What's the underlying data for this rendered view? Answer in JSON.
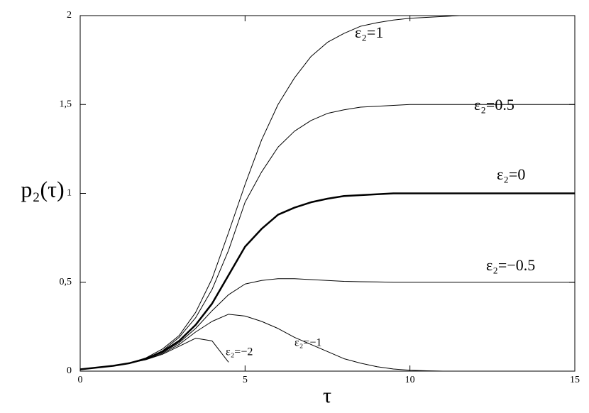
{
  "chart_data": {
    "type": "line",
    "xlabel": "τ",
    "ylabel": "p₂(τ)",
    "x": [
      0,
      0.5,
      1,
      1.5,
      2,
      2.5,
      3,
      3.5,
      4,
      4.5,
      5,
      5.5,
      6,
      6.5,
      7,
      7.5,
      8,
      8.5,
      9,
      9.5,
      10,
      10.5,
      11,
      11.5,
      12,
      12.5,
      13,
      13.5,
      14,
      14.5,
      15
    ],
    "series": [
      {
        "name": "ε₂=1",
        "color": "#000000",
        "linewidth": 1,
        "values": [
          0.01,
          0.02,
          0.03,
          0.045,
          0.075,
          0.125,
          0.2,
          0.33,
          0.52,
          0.78,
          1.05,
          1.3,
          1.5,
          1.65,
          1.77,
          1.85,
          1.9,
          1.94,
          1.96,
          1.975,
          1.985,
          1.99,
          1.995,
          2,
          2,
          2,
          2,
          2,
          2,
          2,
          2
        ]
      },
      {
        "name": "ε₂=0.5",
        "color": "#000000",
        "linewidth": 1,
        "values": [
          0.01,
          0.02,
          0.03,
          0.045,
          0.07,
          0.115,
          0.19,
          0.3,
          0.46,
          0.68,
          0.95,
          1.12,
          1.26,
          1.35,
          1.41,
          1.45,
          1.47,
          1.485,
          1.49,
          1.495,
          1.5,
          1.5,
          1.5,
          1.5,
          1.5,
          1.5,
          1.5,
          1.5,
          1.5,
          1.5,
          1.5
        ]
      },
      {
        "name": "ε₂=0",
        "color": "#000000",
        "linewidth": 2.5,
        "values": [
          0.01,
          0.02,
          0.03,
          0.045,
          0.07,
          0.11,
          0.17,
          0.26,
          0.38,
          0.54,
          0.7,
          0.8,
          0.88,
          0.92,
          0.95,
          0.97,
          0.985,
          0.99,
          0.995,
          1,
          1,
          1,
          1,
          1,
          1,
          1,
          1,
          1,
          1,
          1,
          1
        ]
      },
      {
        "name": "ε₂=−0.5",
        "color": "#000000",
        "linewidth": 1,
        "values": [
          0.01,
          0.02,
          0.03,
          0.045,
          0.07,
          0.105,
          0.16,
          0.24,
          0.34,
          0.43,
          0.49,
          0.51,
          0.52,
          0.52,
          0.515,
          0.51,
          0.505,
          0.503,
          0.502,
          0.5,
          0.5,
          0.5,
          0.5,
          0.5,
          0.5,
          0.5,
          0.5,
          0.5,
          0.5,
          0.5,
          0.5
        ]
      },
      {
        "name": "ε₂=−1",
        "color": "#000000",
        "linewidth": 1,
        "values": [
          0.01,
          0.02,
          0.03,
          0.045,
          0.065,
          0.1,
          0.15,
          0.22,
          0.28,
          0.32,
          0.31,
          0.28,
          0.24,
          0.19,
          0.15,
          0.11,
          0.07,
          0.045,
          0.025,
          0.012,
          0.005,
          0.002,
          0,
          0,
          0,
          0,
          0,
          0,
          0,
          0,
          0
        ]
      },
      {
        "name": "ε₂=−2",
        "color": "#000000",
        "linewidth": 1,
        "values": [
          0.01,
          0.02,
          0.03,
          0.045,
          0.065,
          0.095,
          0.14,
          0.185,
          0.17,
          0.05,
          null,
          null,
          null,
          null,
          null,
          null,
          null,
          null,
          null,
          null,
          null,
          null,
          null,
          null,
          null,
          null,
          null,
          null,
          null,
          null,
          null
        ]
      }
    ],
    "xlim": [
      0,
      15
    ],
    "ylim": [
      0,
      2
    ],
    "xticks": [
      0,
      5,
      10,
      15
    ],
    "yticks": [
      0,
      {
        "value": 0.5,
        "label": "0,5"
      },
      1,
      {
        "value": 1.5,
        "label": "1,5"
      },
      2
    ]
  }
}
